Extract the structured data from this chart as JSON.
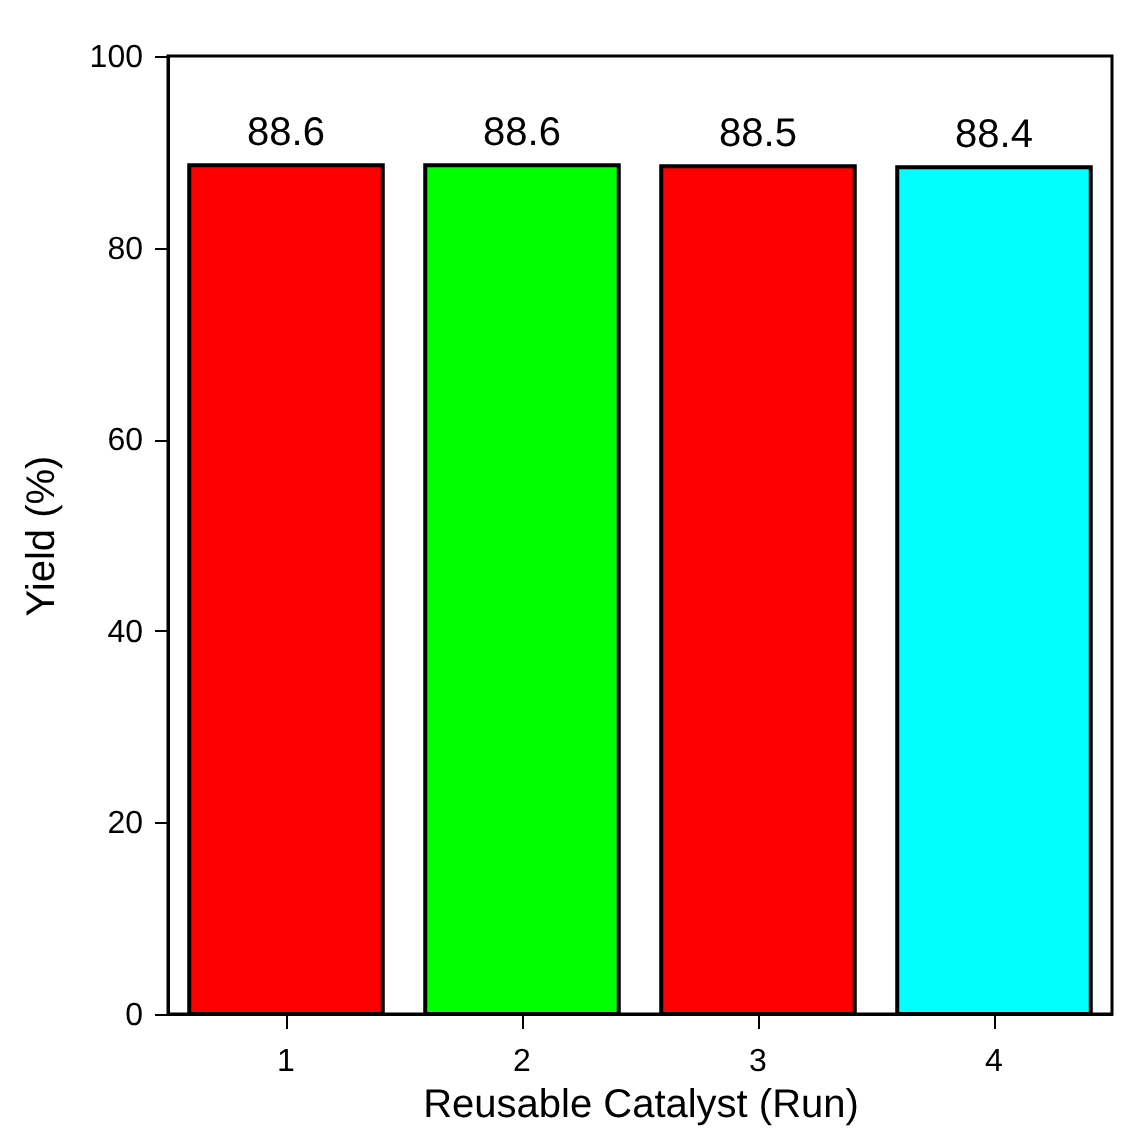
{
  "chart_data": {
    "type": "bar",
    "xlabel": "Reusable Catalyst (Run)",
    "ylabel": "Yield (%)",
    "categories": [
      "1",
      "2",
      "3",
      "4"
    ],
    "values": [
      88.6,
      88.6,
      88.5,
      88.4
    ],
    "colors": [
      "#ff0000",
      "#00ff00",
      "#ff0000",
      "#00ffff"
    ],
    "ylim": [
      0,
      100
    ],
    "yticks": [
      0,
      20,
      40,
      60,
      80,
      100
    ],
    "data_labels": true,
    "grid": false
  }
}
